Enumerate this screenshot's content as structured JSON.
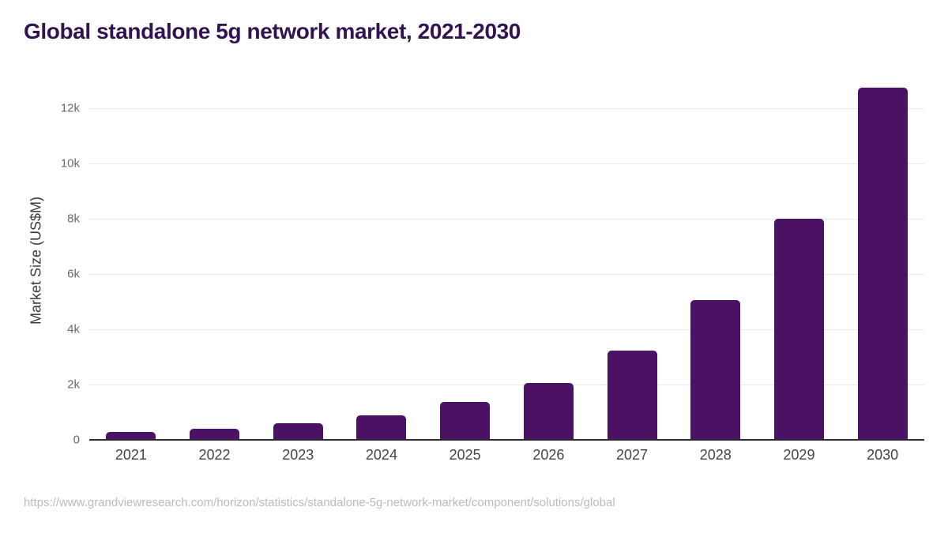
{
  "page": {
    "source_url": "https://www.grandviewresearch.com/horizon/statistics/standalone-5g-network-market/component/solutions/global"
  },
  "colors": {
    "background": "#ffffff",
    "title": "#321250",
    "bar": "#4a1164",
    "grid": "#e9e9e9",
    "axis": "#2b2b2b",
    "tick_label": "#6a6a6a",
    "x_label": "#444444",
    "y_axis_title": "#3a3a3a",
    "source": "#bbbbbb"
  },
  "chart_data": {
    "type": "bar",
    "title": "Global standalone 5g network market, 2021-2030",
    "xlabel": "",
    "ylabel": "Market Size (US$M)",
    "categories": [
      "2021",
      "2022",
      "2023",
      "2024",
      "2025",
      "2026",
      "2027",
      "2028",
      "2029",
      "2030"
    ],
    "values": [
      280,
      390,
      590,
      880,
      1380,
      2050,
      3230,
      5060,
      8000,
      12740
    ],
    "unit": "US$M",
    "ylim": [
      0,
      13057
    ],
    "yticks": [
      {
        "value": 0,
        "label": "0"
      },
      {
        "value": 2000,
        "label": "2k"
      },
      {
        "value": 4000,
        "label": "4k"
      },
      {
        "value": 6000,
        "label": "6k"
      },
      {
        "value": 8000,
        "label": "8k"
      },
      {
        "value": 10000,
        "label": "10k"
      },
      {
        "value": 12000,
        "label": "12k"
      }
    ],
    "grid": true,
    "legend": false
  }
}
